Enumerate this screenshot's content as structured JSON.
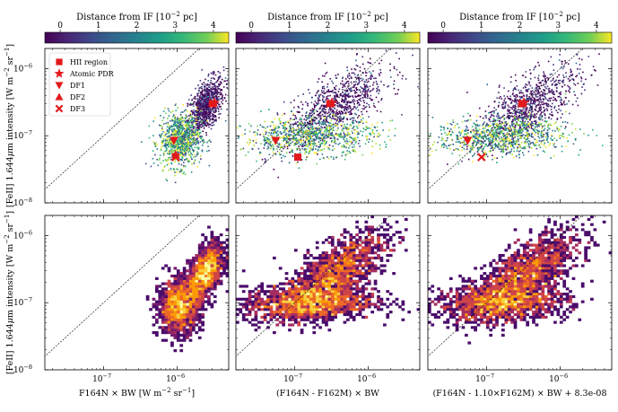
{
  "chart_data": {
    "type": "scatter",
    "title": "",
    "xscale": "log",
    "yscale": "log",
    "xlim_exp": [
      -7.8,
      -5.3
    ],
    "ylim_exp": [
      -8.0,
      -5.7
    ],
    "x_tick_values": [
      1e-07,
      1e-06
    ],
    "x_tick_labels": [
      "10",
      "10"
    ],
    "x_tick_exponent": "−7|−6",
    "y_tick_values": [
      1e-08,
      1e-07,
      1e-06
    ],
    "y_tick_labels": [
      "10",
      "10",
      "10"
    ],
    "y_tick_exponents": [
      "−8",
      "−7",
      "−6"
    ],
    "colorbar": {
      "label": "Distance from IF [10",
      "label_exp": "−2",
      "label_unit": " pc]",
      "ticks": [
        0,
        1,
        2,
        3,
        4
      ],
      "range": [
        -0.4,
        4.4
      ],
      "cmap": "viridis"
    },
    "ylabel_prefix": "[FeII] 1.644",
    "ylabel_mu": "μ",
    "ylabel_suffix": "m intensity [W m",
    "ylabel_unit_exp1": "−2",
    "ylabel_unit_sr": " sr",
    "ylabel_unit_exp2": "−1",
    "ylabel_close": "]",
    "panels": [
      {
        "id": "raw",
        "xlabel": "F164N × BW [W m",
        "xlabel_exp1": "−2",
        "xlabel_sr": " sr",
        "xlabel_exp2": "−1",
        "xlabel_close": "]",
        "clusters": [
          {
            "name": "bright",
            "xc": -5.62,
            "yc": -6.55,
            "spread": [
              0.12,
              0.18
            ],
            "tilt": 0.9
          },
          {
            "name": "faint",
            "xc": -5.97,
            "yc": -7.05,
            "spread": [
              0.14,
              0.2
            ],
            "tilt": 0.3
          }
        ]
      },
      {
        "id": "diff",
        "xlabel": "(F164N - F162M) × BW",
        "clusters": [
          {
            "name": "bright",
            "xc": -6.45,
            "yc": -6.55,
            "spread": [
              0.35,
              0.22
            ],
            "tilt": 0.6
          },
          {
            "name": "faint",
            "xc": -6.8,
            "yc": -7.0,
            "spread": [
              0.45,
              0.14
            ],
            "tilt": 0.1
          }
        ]
      },
      {
        "id": "scaled",
        "xlabel": "(F164N - 1.10×F162M) × BW + 8.3e-08",
        "clusters": [
          {
            "name": "bright",
            "xc": -6.45,
            "yc": -6.55,
            "spread": [
              0.35,
              0.22
            ],
            "tilt": 0.6
          },
          {
            "name": "faint",
            "xc": -6.8,
            "yc": -7.0,
            "spread": [
              0.45,
              0.14
            ],
            "tilt": 0.1
          }
        ]
      }
    ],
    "legend": {
      "placement": "top-left",
      "entries": [
        {
          "label": "HII region",
          "marker": "square"
        },
        {
          "label": "Atomic PDR",
          "marker": "star"
        },
        {
          "label": "DF1",
          "marker": "triangle-down"
        },
        {
          "label": "DF2",
          "marker": "triangle-up"
        },
        {
          "label": "DF3",
          "marker": "x"
        }
      ]
    },
    "markers": [
      {
        "panel": 0,
        "type": "square",
        "x": 3e-06,
        "y": 3e-07
      },
      {
        "panel": 0,
        "type": "star",
        "x": 3.2e-06,
        "y": 3.1e-07
      },
      {
        "panel": 0,
        "type": "triangle-down",
        "x": 9e-07,
        "y": 8.5e-08
      },
      {
        "panel": 0,
        "type": "triangle-up",
        "x": 9.5e-07,
        "y": 5.2e-08
      },
      {
        "panel": 0,
        "type": "x",
        "x": 9.5e-07,
        "y": 4.8e-08
      },
      {
        "panel": 1,
        "type": "square",
        "x": 3e-07,
        "y": 3e-07
      },
      {
        "panel": 1,
        "type": "star",
        "x": 3.2e-07,
        "y": 3.1e-07
      },
      {
        "panel": 1,
        "type": "triangle-down",
        "x": 5.5e-08,
        "y": 8.5e-08
      },
      {
        "panel": 1,
        "type": "square",
        "x": 1.1e-07,
        "y": 4.8e-08
      },
      {
        "panel": 2,
        "type": "square",
        "x": 3e-07,
        "y": 3e-07
      },
      {
        "panel": 2,
        "type": "star",
        "x": 3.2e-07,
        "y": 3.1e-07
      },
      {
        "panel": 2,
        "type": "triangle-down",
        "x": 5.5e-08,
        "y": 8.5e-08
      },
      {
        "panel": 2,
        "type": "x",
        "x": 8.5e-08,
        "y": 4.8e-08
      }
    ],
    "one_to_one_line": true,
    "bottom_row": "density-histogram"
  }
}
